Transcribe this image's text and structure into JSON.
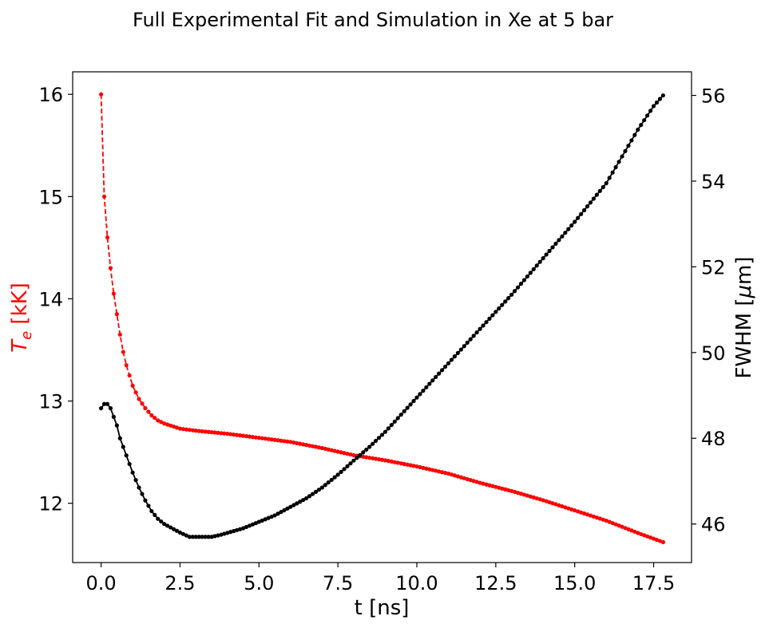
{
  "chart_data": {
    "type": "line",
    "title": "Full Experimental Fit and Simulation in Xe at 5 bar",
    "xlabel": "t [ns]",
    "ylabel_left": "T_e [kK]",
    "ylabel_left_parts": {
      "symbol": "T",
      "subscript": "e",
      "unit": " [kK]"
    },
    "ylabel_right": "FWHM [μm]",
    "ylabel_right_parts": {
      "prefix": "FWHM [",
      "symbol": "μ",
      "suffix": "m]"
    },
    "xlim": [
      -0.9,
      18.7
    ],
    "ylim_left": [
      11.42,
      16.22
    ],
    "ylim_right": [
      45.1,
      56.55
    ],
    "x_ticks": [
      0.0,
      2.5,
      5.0,
      7.5,
      10.0,
      12.5,
      15.0,
      17.5
    ],
    "x_tick_labels": [
      "0.0",
      "2.5",
      "5.0",
      "7.5",
      "10.0",
      "12.5",
      "15.0",
      "17.5"
    ],
    "y_left_ticks": [
      12,
      13,
      14,
      15,
      16
    ],
    "y_left_tick_labels": [
      "12",
      "13",
      "14",
      "15",
      "16"
    ],
    "y_right_ticks": [
      46,
      48,
      50,
      52,
      54,
      56
    ],
    "y_right_tick_labels": [
      "46",
      "48",
      "50",
      "52",
      "54",
      "56"
    ],
    "grid": false,
    "legend": "none",
    "x_range": [
      0.0,
      17.8
    ],
    "x_step": 0.1,
    "series": [
      {
        "axis": "left",
        "color": "#ff0000",
        "linestyle": "dashed",
        "marker": "dot",
        "anchors": [
          [
            0.0,
            16.0
          ],
          [
            0.05,
            15.45
          ],
          [
            0.1,
            15.0
          ],
          [
            0.2,
            14.6
          ],
          [
            0.3,
            14.3
          ],
          [
            0.4,
            14.05
          ],
          [
            0.5,
            13.85
          ],
          [
            0.6,
            13.65
          ],
          [
            0.7,
            13.48
          ],
          [
            0.8,
            13.35
          ],
          [
            1.0,
            13.15
          ],
          [
            1.2,
            13.02
          ],
          [
            1.4,
            12.93
          ],
          [
            1.6,
            12.86
          ],
          [
            1.8,
            12.81
          ],
          [
            2.0,
            12.78
          ],
          [
            2.5,
            12.73
          ],
          [
            3.0,
            12.71
          ],
          [
            4.0,
            12.68
          ],
          [
            5.0,
            12.64
          ],
          [
            6.0,
            12.6
          ],
          [
            7.0,
            12.54
          ],
          [
            8.0,
            12.47
          ],
          [
            9.0,
            12.42
          ],
          [
            10.0,
            12.36
          ],
          [
            11.0,
            12.29
          ],
          [
            12.0,
            12.2
          ],
          [
            13.0,
            12.12
          ],
          [
            14.0,
            12.03
          ],
          [
            15.0,
            11.93
          ],
          [
            16.0,
            11.83
          ],
          [
            17.0,
            11.71
          ],
          [
            17.8,
            11.62
          ]
        ]
      },
      {
        "axis": "right",
        "color": "#000000",
        "linestyle": "solid",
        "marker": "dot",
        "anchors": [
          [
            0.0,
            48.7
          ],
          [
            0.1,
            48.8
          ],
          [
            0.2,
            48.8
          ],
          [
            0.3,
            48.7
          ],
          [
            0.4,
            48.5
          ],
          [
            0.5,
            48.3
          ],
          [
            0.6,
            48.0
          ],
          [
            0.8,
            47.6
          ],
          [
            1.0,
            47.2
          ],
          [
            1.2,
            46.85
          ],
          [
            1.4,
            46.55
          ],
          [
            1.6,
            46.3
          ],
          [
            1.8,
            46.12
          ],
          [
            2.0,
            46.0
          ],
          [
            2.5,
            45.8
          ],
          [
            2.8,
            45.7
          ],
          [
            3.5,
            45.7
          ],
          [
            3.8,
            45.75
          ],
          [
            4.5,
            45.9
          ],
          [
            5.0,
            46.05
          ],
          [
            5.5,
            46.2
          ],
          [
            6.0,
            46.4
          ],
          [
            6.5,
            46.6
          ],
          [
            7.0,
            46.85
          ],
          [
            7.5,
            47.15
          ],
          [
            8.0,
            47.48
          ],
          [
            8.5,
            47.8
          ],
          [
            9.0,
            48.15
          ],
          [
            10.0,
            48.95
          ],
          [
            11.0,
            49.75
          ],
          [
            12.0,
            50.55
          ],
          [
            13.0,
            51.35
          ],
          [
            14.0,
            52.2
          ],
          [
            15.0,
            53.05
          ],
          [
            16.0,
            53.95
          ],
          [
            17.0,
            55.2
          ],
          [
            17.5,
            55.75
          ],
          [
            17.8,
            56.0
          ]
        ]
      }
    ]
  }
}
